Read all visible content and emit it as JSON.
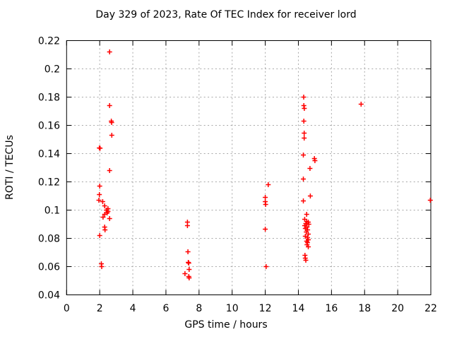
{
  "chart_data": {
    "type": "scatter",
    "title": "Day 329 of 2023, Rate Of TEC Index for receiver lord",
    "xlabel": "GPS time / hours",
    "ylabel": "ROTI / TECUs",
    "xlim": [
      0,
      22
    ],
    "ylim": [
      0.04,
      0.22
    ],
    "x_tick_values": [
      0,
      2,
      4,
      6,
      8,
      10,
      12,
      14,
      16,
      18,
      20,
      22
    ],
    "x_tick_labels": [
      "0",
      "2",
      "4",
      "6",
      "8",
      "10",
      "12",
      "14",
      "16",
      "18",
      "20",
      "22"
    ],
    "y_tick_values": [
      0.04,
      0.06,
      0.08,
      0.1,
      0.12,
      0.14,
      0.16,
      0.18,
      0.2,
      0.22
    ],
    "y_tick_labels": [
      "0.04",
      "0.06",
      "0.08",
      "0.1",
      "0.12",
      "0.14",
      "0.16",
      "0.18",
      "0.2",
      "0.22"
    ],
    "grid": true,
    "legend": "none",
    "marker": "plus",
    "marker_color": "#ff0000",
    "background_color": "#ffffff",
    "grid_color": "#a8a8a8",
    "series": [
      {
        "name": "ROTI",
        "points": [
          [
            1.95,
            0.107
          ],
          [
            1.98,
            0.144
          ],
          [
            2.02,
            0.1438
          ],
          [
            1.98,
            0.111
          ],
          [
            2.0,
            0.117
          ],
          [
            2.0,
            0.082
          ],
          [
            2.1,
            0.062
          ],
          [
            2.12,
            0.06
          ],
          [
            2.18,
            0.106
          ],
          [
            2.2,
            0.095
          ],
          [
            2.3,
            0.103
          ],
          [
            2.3,
            0.097
          ],
          [
            2.3,
            0.088
          ],
          [
            2.32,
            0.086
          ],
          [
            2.4,
            0.1
          ],
          [
            2.45,
            0.098
          ],
          [
            2.5,
            0.101
          ],
          [
            2.5,
            0.099
          ],
          [
            2.6,
            0.212
          ],
          [
            2.6,
            0.174
          ],
          [
            2.7,
            0.163
          ],
          [
            2.72,
            0.162
          ],
          [
            2.73,
            0.153
          ],
          [
            2.6,
            0.128
          ],
          [
            2.6,
            0.094
          ],
          [
            7.3,
            0.0915
          ],
          [
            7.3,
            0.089
          ],
          [
            7.33,
            0.0705
          ],
          [
            7.35,
            0.063
          ],
          [
            7.38,
            0.0625
          ],
          [
            7.4,
            0.058
          ],
          [
            7.15,
            0.055
          ],
          [
            7.38,
            0.053
          ],
          [
            7.4,
            0.052
          ],
          [
            12.18,
            0.118
          ],
          [
            12.0,
            0.109
          ],
          [
            12.0,
            0.106
          ],
          [
            12.02,
            0.104
          ],
          [
            12.0,
            0.0865
          ],
          [
            12.05,
            0.06
          ],
          [
            14.32,
            0.18
          ],
          [
            14.33,
            0.174
          ],
          [
            14.36,
            0.172
          ],
          [
            14.33,
            0.163
          ],
          [
            14.35,
            0.1545
          ],
          [
            14.35,
            0.151
          ],
          [
            14.3,
            0.139
          ],
          [
            14.97,
            0.1365
          ],
          [
            15.0,
            0.135
          ],
          [
            14.7,
            0.1295
          ],
          [
            14.3,
            0.122
          ],
          [
            14.72,
            0.11
          ],
          [
            14.3,
            0.1065
          ],
          [
            14.5,
            0.097
          ],
          [
            14.38,
            0.0935
          ],
          [
            14.5,
            0.092
          ],
          [
            14.6,
            0.0915
          ],
          [
            14.45,
            0.0905
          ],
          [
            14.63,
            0.09
          ],
          [
            14.38,
            0.089
          ],
          [
            14.52,
            0.088
          ],
          [
            14.42,
            0.087
          ],
          [
            14.56,
            0.086
          ],
          [
            14.48,
            0.0845
          ],
          [
            14.6,
            0.083
          ],
          [
            14.42,
            0.0815
          ],
          [
            14.55,
            0.0805
          ],
          [
            14.6,
            0.079
          ],
          [
            14.5,
            0.078
          ],
          [
            14.55,
            0.077
          ],
          [
            14.52,
            0.0755
          ],
          [
            14.6,
            0.074
          ],
          [
            14.4,
            0.068
          ],
          [
            14.42,
            0.066
          ],
          [
            14.45,
            0.0645
          ],
          [
            17.79,
            0.175
          ],
          [
            21.97,
            0.107
          ]
        ]
      }
    ]
  }
}
